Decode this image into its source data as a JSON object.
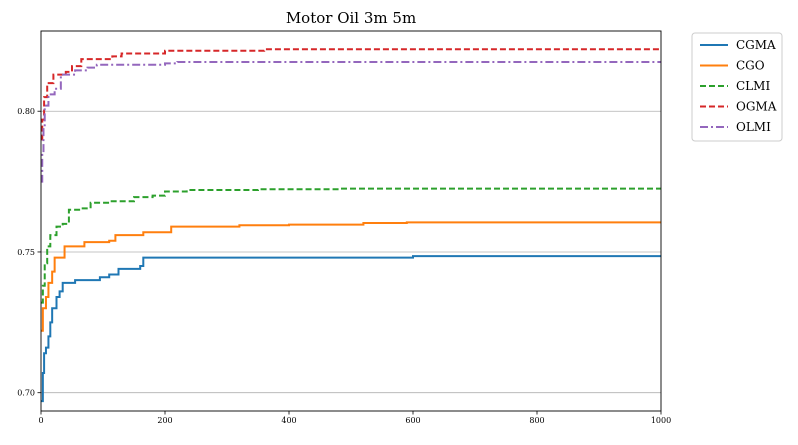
{
  "chart_data": {
    "type": "line",
    "title": "Motor Oil 3m 5m",
    "xlabel": "",
    "ylabel": "",
    "xlim": [
      0,
      1000
    ],
    "ylim": [
      0.6935,
      0.8285
    ],
    "xticks": [
      0,
      200,
      400,
      600,
      800,
      1000
    ],
    "yticks": [
      0.7,
      0.75,
      0.8
    ],
    "xtick_labels": [
      "0",
      "200",
      "400",
      "600",
      "800",
      "1000"
    ],
    "ytick_labels": [
      "0.70",
      "0.75",
      "0.80"
    ],
    "grid": "y-major",
    "legend_position": "outside-top-right",
    "series": [
      {
        "name": "CGMA",
        "color": "#1f77b4",
        "dash": "solid",
        "step": true,
        "points": [
          [
            0,
            0.697
          ],
          [
            3,
            0.707
          ],
          [
            5,
            0.714
          ],
          [
            8,
            0.716
          ],
          [
            12,
            0.72
          ],
          [
            15,
            0.725
          ],
          [
            18,
            0.73
          ],
          [
            25,
            0.734
          ],
          [
            30,
            0.736
          ],
          [
            35,
            0.739
          ],
          [
            55,
            0.74
          ],
          [
            95,
            0.741
          ],
          [
            110,
            0.742
          ],
          [
            125,
            0.744
          ],
          [
            160,
            0.745
          ],
          [
            165,
            0.748
          ],
          [
            600,
            0.7485
          ],
          [
            1000,
            0.7485
          ]
        ]
      },
      {
        "name": "CGO",
        "color": "#ff7f0e",
        "dash": "solid",
        "step": true,
        "points": [
          [
            0,
            0.722
          ],
          [
            3,
            0.73
          ],
          [
            8,
            0.734
          ],
          [
            12,
            0.739
          ],
          [
            18,
            0.743
          ],
          [
            22,
            0.748
          ],
          [
            38,
            0.752
          ],
          [
            70,
            0.7535
          ],
          [
            110,
            0.754
          ],
          [
            120,
            0.756
          ],
          [
            165,
            0.757
          ],
          [
            210,
            0.759
          ],
          [
            320,
            0.7595
          ],
          [
            400,
            0.7597
          ],
          [
            520,
            0.7603
          ],
          [
            590,
            0.7605
          ],
          [
            1000,
            0.7605
          ]
        ]
      },
      {
        "name": "CLMI",
        "color": "#2ca02c",
        "dash": "dashed",
        "step": true,
        "points": [
          [
            0,
            0.732
          ],
          [
            3,
            0.738
          ],
          [
            6,
            0.746
          ],
          [
            10,
            0.752
          ],
          [
            15,
            0.756
          ],
          [
            25,
            0.759
          ],
          [
            35,
            0.76
          ],
          [
            45,
            0.765
          ],
          [
            65,
            0.7655
          ],
          [
            80,
            0.7675
          ],
          [
            110,
            0.768
          ],
          [
            150,
            0.7695
          ],
          [
            180,
            0.77
          ],
          [
            200,
            0.7715
          ],
          [
            235,
            0.772
          ],
          [
            350,
            0.7723
          ],
          [
            480,
            0.7725
          ],
          [
            1000,
            0.7725
          ]
        ]
      },
      {
        "name": "OGMA",
        "color": "#d62728",
        "dash": "dashed",
        "step": true,
        "points": [
          [
            0,
            0.79
          ],
          [
            2,
            0.797
          ],
          [
            5,
            0.805
          ],
          [
            10,
            0.81
          ],
          [
            20,
            0.813
          ],
          [
            40,
            0.814
          ],
          [
            50,
            0.816
          ],
          [
            65,
            0.8185
          ],
          [
            115,
            0.8195
          ],
          [
            130,
            0.8205
          ],
          [
            200,
            0.8215
          ],
          [
            360,
            0.822
          ],
          [
            1000,
            0.822
          ]
        ]
      },
      {
        "name": "OLMI",
        "color": "#9467bd",
        "dash": "dashdot",
        "step": true,
        "points": [
          [
            0,
            0.775
          ],
          [
            2,
            0.785
          ],
          [
            4,
            0.795
          ],
          [
            6,
            0.802
          ],
          [
            12,
            0.806
          ],
          [
            22,
            0.808
          ],
          [
            32,
            0.813
          ],
          [
            55,
            0.8145
          ],
          [
            75,
            0.8155
          ],
          [
            90,
            0.8165
          ],
          [
            200,
            0.817
          ],
          [
            220,
            0.8175
          ],
          [
            1000,
            0.8175
          ]
        ]
      }
    ]
  }
}
